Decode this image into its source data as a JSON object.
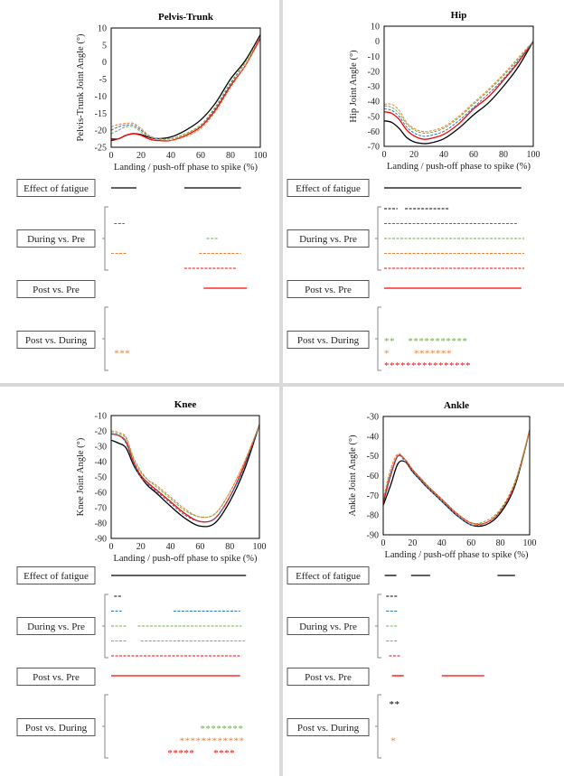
{
  "colors": {
    "black": "#000000",
    "blue": "#2e75b6",
    "green": "#70ad47",
    "orange": "#ed7d31",
    "red": "#ff0000",
    "divider": "#d9d9d9"
  },
  "row_labels": {
    "effect": "Effect of fatigue",
    "during": "During vs. Pre",
    "post_pre": "Post vs. Pre",
    "post_during": "Post vs. During"
  },
  "chart_data": [
    {
      "type": "line",
      "title": "Pelvis-Trunk",
      "xlabel": "Landing / push-off phase to spike (%)",
      "ylabel": "Pelvis-Trunk Joint Angle (°)",
      "xlim": [
        0,
        100
      ],
      "ylim": [
        -25,
        10
      ],
      "xticks": [
        0,
        20,
        40,
        60,
        80,
        100
      ],
      "yticks": [
        -25,
        -20,
        -15,
        -10,
        -5,
        0,
        5,
        10
      ],
      "grid": false,
      "x": [
        0,
        5,
        10,
        15,
        20,
        25,
        30,
        40,
        50,
        60,
        70,
        80,
        90,
        100
      ],
      "series": [
        {
          "color": "black",
          "style": "solid",
          "values": [
            -23,
            -22.5,
            -21.5,
            -21,
            -21.3,
            -22,
            -22.5,
            -22,
            -20,
            -17,
            -12,
            -5,
            0.5,
            8
          ]
        },
        {
          "color": "red",
          "style": "solid",
          "values": [
            -22.5,
            -22.5,
            -21.5,
            -21,
            -21.5,
            -22.5,
            -23,
            -23,
            -21.5,
            -19,
            -14,
            -7,
            -1,
            7
          ]
        },
        {
          "color": "blue",
          "style": "dashed",
          "values": [
            -20,
            -19,
            -18.5,
            -18.5,
            -20,
            -21.5,
            -22.3,
            -22.5,
            -21,
            -18.5,
            -13.5,
            -6.5,
            0,
            7.5
          ]
        },
        {
          "color": "green",
          "style": "dashed",
          "values": [
            -21,
            -20,
            -19,
            -19,
            -20.5,
            -21.8,
            -22.5,
            -22.5,
            -21,
            -18.5,
            -13,
            -6,
            0,
            7.5
          ]
        },
        {
          "color": "orange",
          "style": "dashed",
          "values": [
            -19,
            -18.3,
            -18,
            -18,
            -19.5,
            -21.5,
            -22.5,
            -23,
            -21.8,
            -19.5,
            -14.5,
            -7.5,
            -1,
            6.5
          ]
        }
      ],
      "significance": {
        "effect": [
          [
            0,
            17
          ],
          [
            49,
            87
          ]
        ],
        "during": [
          {
            "color": "blue",
            "segments": [
              [
                2,
                9
              ]
            ]
          },
          {
            "color": "green",
            "segments": [
              [
                64,
                72
              ]
            ]
          },
          {
            "color": "orange",
            "segments": [
              [
                0,
                10
              ],
              [
                59,
                87
              ]
            ]
          },
          {
            "color": "red",
            "segments": [
              [
                49,
                84
              ]
            ]
          }
        ],
        "post_pre": [
          [
            62,
            91
          ]
        ],
        "post_during": [
          {
            "color": "orange",
            "marks": [
              {
                "start": 2,
                "text": "***"
              }
            ]
          }
        ]
      }
    },
    {
      "type": "line",
      "title": "Hip",
      "xlabel": "Landing / push-off phase to spike (%)",
      "ylabel": "Hip Joint Angle (°)",
      "xlim": [
        0,
        100
      ],
      "ylim": [
        -70,
        10
      ],
      "xticks": [
        0,
        20,
        40,
        60,
        80,
        100
      ],
      "yticks": [
        -70,
        -60,
        -50,
        -40,
        -30,
        -20,
        -10,
        0,
        10
      ],
      "grid": false,
      "x": [
        0,
        5,
        10,
        15,
        20,
        25,
        30,
        40,
        50,
        60,
        70,
        80,
        90,
        100
      ],
      "series": [
        {
          "color": "black",
          "style": "solid",
          "values": [
            -53,
            -54,
            -58,
            -64,
            -67,
            -68,
            -68,
            -65,
            -58,
            -49,
            -41,
            -30,
            -17,
            0
          ]
        },
        {
          "color": "red",
          "style": "solid",
          "values": [
            -47,
            -48,
            -52,
            -59,
            -63,
            -65,
            -65,
            -62,
            -55,
            -45,
            -37,
            -26,
            -14,
            0
          ]
        },
        {
          "color": "blue",
          "style": "dashed",
          "values": [
            -45,
            -46,
            -50,
            -57,
            -61,
            -63,
            -63,
            -60,
            -53,
            -44,
            -35,
            -25,
            -13,
            0
          ]
        },
        {
          "color": "green",
          "style": "dashed",
          "values": [
            -43,
            -44,
            -48,
            -55,
            -59,
            -61,
            -61,
            -58,
            -51,
            -42,
            -33,
            -23,
            -12,
            0
          ]
        },
        {
          "color": "orange",
          "style": "dashed",
          "values": [
            -42,
            -42,
            -46,
            -54,
            -58,
            -60,
            -60,
            -57,
            -50,
            -41,
            -32,
            -22,
            -11,
            0
          ]
        }
      ],
      "significance": {
        "effect": [
          [
            0,
            92
          ]
        ],
        "during": [
          {
            "color": "black",
            "segments": [
              [
                0,
                9
              ],
              [
                14,
                44
              ]
            ]
          },
          {
            "color": "blue",
            "segments": [
              [
                0,
                89
              ]
            ]
          },
          {
            "color": "green",
            "segments": [
              [
                0,
                94
              ]
            ]
          },
          {
            "color": "orange",
            "segments": [
              [
                0,
                94
              ]
            ]
          },
          {
            "color": "red",
            "segments": [
              [
                0,
                94
              ]
            ]
          }
        ],
        "post_pre": [
          [
            0,
            92
          ]
        ],
        "post_during": [
          {
            "color": "green",
            "marks": [
              {
                "start": 0,
                "text": "**"
              },
              {
                "start": 16,
                "text": "***********"
              }
            ]
          },
          {
            "color": "orange",
            "marks": [
              {
                "start": 0,
                "text": "*"
              },
              {
                "start": 20,
                "text": "*******"
              }
            ]
          },
          {
            "color": "red",
            "marks": [
              {
                "start": 0,
                "text": "****************"
              }
            ]
          }
        ]
      }
    },
    {
      "type": "line",
      "title": "Knee",
      "xlabel": "Landing / push-off phase to spike (%)",
      "ylabel": "Knee Joint Angle (°)",
      "xlim": [
        0,
        100
      ],
      "ylim": [
        -90,
        -10
      ],
      "xticks": [
        0,
        20,
        40,
        60,
        80,
        100
      ],
      "yticks": [
        -90,
        -80,
        -70,
        -60,
        -50,
        -40,
        -30,
        -20,
        -10
      ],
      "grid": false,
      "x": [
        0,
        5,
        10,
        15,
        20,
        25,
        30,
        40,
        50,
        60,
        70,
        80,
        90,
        100
      ],
      "series": [
        {
          "color": "black",
          "style": "solid",
          "values": [
            -26,
            -28,
            -31,
            -42,
            -50,
            -56,
            -60,
            -69,
            -77,
            -82,
            -80,
            -66,
            -45,
            -16
          ]
        },
        {
          "color": "red",
          "style": "solid",
          "values": [
            -22,
            -23,
            -27,
            -40,
            -49,
            -54,
            -58,
            -66,
            -74,
            -79,
            -77,
            -63,
            -42,
            -16
          ]
        },
        {
          "color": "blue",
          "style": "dashed",
          "values": [
            -22,
            -23,
            -28,
            -41,
            -50,
            -55,
            -59,
            -67,
            -75,
            -79,
            -77,
            -63,
            -43,
            -16
          ]
        },
        {
          "color": "green",
          "style": "dashed",
          "values": [
            -21,
            -22,
            -25,
            -38,
            -47,
            -52,
            -56,
            -64,
            -72,
            -76,
            -74,
            -60,
            -40,
            -16
          ]
        },
        {
          "color": "orange",
          "style": "dashed",
          "values": [
            -20,
            -21,
            -24,
            -37,
            -46,
            -52,
            -55,
            -63,
            -71,
            -76,
            -74,
            -60,
            -40,
            -16
          ]
        }
      ],
      "significance": {
        "effect": [
          [
            0,
            91
          ]
        ],
        "during": [
          {
            "color": "black",
            "segments": [
              [
                2,
                7
              ]
            ]
          },
          {
            "color": "blue",
            "segments": [
              [
                0,
                7
              ],
              [
                42,
                87
              ]
            ]
          },
          {
            "color": "green",
            "segments": [
              [
                0,
                10
              ],
              [
                18,
                88
              ]
            ]
          },
          {
            "color": "orange",
            "segments": [
              [
                0,
                10
              ],
              [
                20,
                90
              ]
            ]
          },
          {
            "color": "red",
            "segments": [
              [
                0,
                88
              ]
            ]
          }
        ],
        "post_pre": [
          [
            0,
            87
          ]
        ],
        "post_during": [
          {
            "color": "green",
            "marks": [
              {
                "start": 60,
                "text": "********"
              }
            ]
          },
          {
            "color": "orange",
            "marks": [
              {
                "start": 46,
                "text": "************"
              }
            ]
          },
          {
            "color": "red",
            "marks": [
              {
                "start": 38,
                "text": "*****"
              },
              {
                "start": 69,
                "text": "****"
              }
            ]
          }
        ]
      }
    },
    {
      "type": "line",
      "title": "Ankle",
      "xlabel": "Landing / push-off phase to spike (%)",
      "ylabel": "Ankle Joint Angle (°)",
      "xlim": [
        0,
        100
      ],
      "ylim": [
        -90,
        -30
      ],
      "xticks": [
        0,
        20,
        40,
        60,
        80,
        100
      ],
      "yticks": [
        -90,
        -80,
        -70,
        -60,
        -50,
        -40,
        -30
      ],
      "grid": false,
      "x": [
        0,
        5,
        10,
        15,
        20,
        25,
        30,
        40,
        50,
        60,
        70,
        80,
        90,
        100
      ],
      "series": [
        {
          "color": "black",
          "style": "solid",
          "values": [
            -75,
            -65,
            -54,
            -53,
            -58,
            -62,
            -66,
            -73,
            -80,
            -85,
            -85,
            -79,
            -65,
            -37
          ]
        },
        {
          "color": "red",
          "style": "solid",
          "values": [
            -74,
            -60,
            -50,
            -52,
            -57,
            -61,
            -65,
            -72,
            -79,
            -84,
            -84,
            -78,
            -64,
            -37
          ]
        },
        {
          "color": "blue",
          "style": "dashed",
          "values": [
            -73,
            -59,
            -50,
            -53,
            -58,
            -62,
            -66,
            -73,
            -80,
            -85,
            -84,
            -78,
            -64,
            -37
          ]
        },
        {
          "color": "green",
          "style": "dashed",
          "values": [
            -72,
            -57,
            -49,
            -52,
            -57,
            -61,
            -65,
            -72,
            -79,
            -84,
            -83,
            -77,
            -63,
            -37
          ]
        },
        {
          "color": "orange",
          "style": "dashed",
          "values": [
            -72,
            -57,
            -49,
            -52,
            -57,
            -61,
            -65,
            -72,
            -79,
            -84,
            -84,
            -78,
            -64,
            -37
          ]
        }
      ],
      "significance": {
        "effect": [
          [
            1,
            9
          ],
          [
            19,
            32
          ],
          [
            78,
            90
          ]
        ],
        "during": [
          {
            "color": "black",
            "segments": [
              [
                2,
                10
              ]
            ]
          },
          {
            "color": "blue",
            "segments": [
              [
                2,
                10
              ]
            ]
          },
          {
            "color": "green",
            "segments": [
              [
                2,
                10
              ]
            ]
          },
          {
            "color": "orange",
            "segments": [
              [
                2,
                10
              ]
            ]
          },
          {
            "color": "red",
            "segments": [
              [
                4,
                12
              ]
            ]
          }
        ],
        "post_pre": [
          [
            6,
            14
          ],
          [
            40,
            69
          ]
        ],
        "post_during": [
          {
            "color": "black",
            "marks": [
              {
                "start": 4,
                "text": "**"
              }
            ]
          },
          {
            "color": "orange",
            "marks": [
              {
                "start": 5,
                "text": "*"
              }
            ]
          }
        ]
      }
    }
  ]
}
